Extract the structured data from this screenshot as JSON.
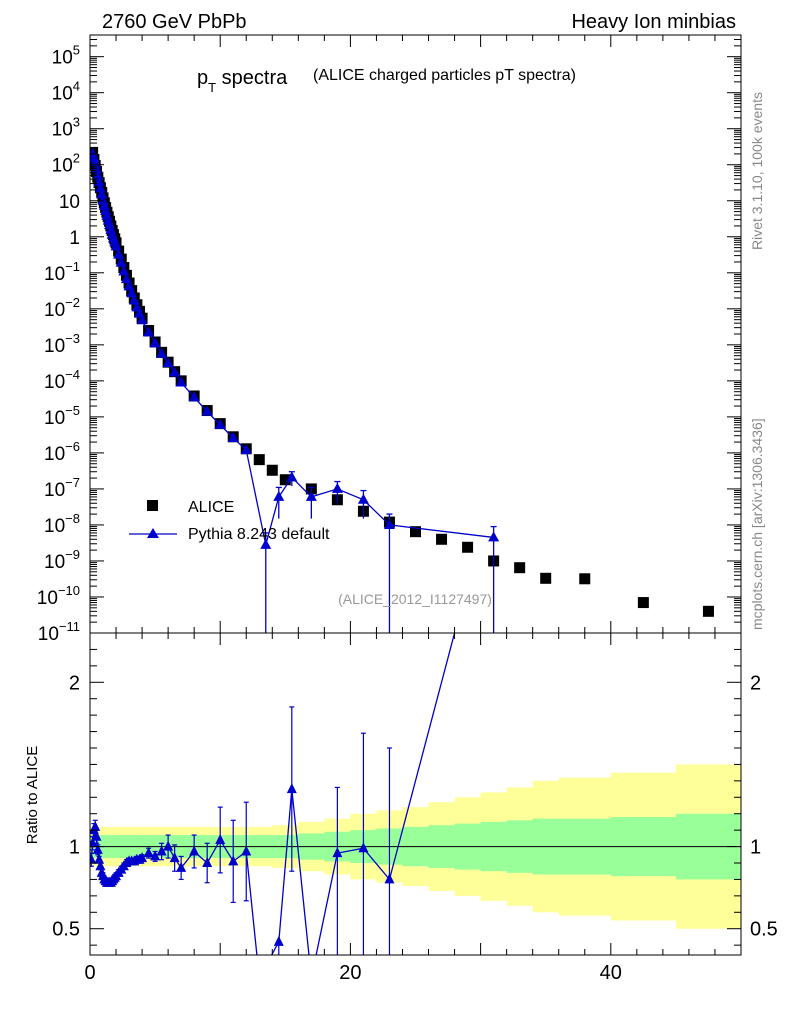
{
  "header": {
    "collision": "2760 GeV PbPb",
    "process": "Heavy Ion minbias"
  },
  "side_labels": {
    "rivet": "Rivet 3.1.10,  100k events",
    "mcplots": "mcplots.cern.ch [arXiv:1306.3436]"
  },
  "analysis_id": "(ALICE_2012_I1127497)",
  "chart_data": [
    {
      "type": "scatter",
      "title": "p_T spectra",
      "title_main": "p",
      "title_sub": "T",
      "title_word": "spectra",
      "subtitle": "(ALICE charged particles pT spectra)",
      "ylog": true,
      "xlim": [
        0,
        50
      ],
      "ylim": [
        1e-11,
        400000.0
      ],
      "y_ticks": [
        {
          "exp": 5,
          "label": "10",
          "sup": "5"
        },
        {
          "exp": 4,
          "label": "10",
          "sup": "4"
        },
        {
          "exp": 3,
          "label": "10",
          "sup": "3"
        },
        {
          "exp": 2,
          "label": "10",
          "sup": "2"
        },
        {
          "exp": 1,
          "label": "10",
          "sup": ""
        },
        {
          "exp": 0,
          "label": "1",
          "sup": ""
        },
        {
          "exp": -1,
          "label": "10",
          "sup": "−1"
        },
        {
          "exp": -2,
          "label": "10",
          "sup": "−2"
        },
        {
          "exp": -3,
          "label": "10",
          "sup": "−3"
        },
        {
          "exp": -4,
          "label": "10",
          "sup": "−4"
        },
        {
          "exp": -5,
          "label": "10",
          "sup": "−5"
        },
        {
          "exp": -6,
          "label": "10",
          "sup": "−6"
        },
        {
          "exp": -7,
          "label": "10",
          "sup": "−7"
        },
        {
          "exp": -8,
          "label": "10",
          "sup": "−8"
        },
        {
          "exp": -9,
          "label": "10",
          "sup": "−9"
        },
        {
          "exp": -10,
          "label": "10",
          "sup": "−10"
        },
        {
          "exp": -11,
          "label": "10",
          "sup": "−11"
        }
      ],
      "legend": {
        "placement": "lower-left",
        "entries": [
          "ALICE",
          "Pythia 8.243 default"
        ]
      },
      "series": [
        {
          "name": "ALICE",
          "marker": "square",
          "color": "#000000",
          "x": [
            0.2,
            0.3,
            0.4,
            0.5,
            0.6,
            0.7,
            0.8,
            0.9,
            1.0,
            1.1,
            1.2,
            1.3,
            1.4,
            1.5,
            1.6,
            1.7,
            1.8,
            1.9,
            2.0,
            2.2,
            2.4,
            2.6,
            2.8,
            3.0,
            3.2,
            3.4,
            3.6,
            3.8,
            4.0,
            4.5,
            5.0,
            5.5,
            6.0,
            6.5,
            7.0,
            8.0,
            9.0,
            10.0,
            11.0,
            12.0,
            13.0,
            14.0,
            15.0,
            17.0,
            19.0,
            21.0,
            23.0,
            25.0,
            27.0,
            29.0,
            31.0,
            33.0,
            35.0,
            38.0,
            42.5,
            47.5
          ],
          "y": [
            220,
            140,
            95,
            65,
            45,
            32,
            23,
            17,
            12,
            8.8,
            6.5,
            4.8,
            3.6,
            2.7,
            2.0,
            1.5,
            1.15,
            0.88,
            0.68,
            0.4,
            0.24,
            0.14,
            0.085,
            0.052,
            0.032,
            0.02,
            0.013,
            0.0085,
            0.0055,
            0.0025,
            0.0012,
            0.00062,
            0.00033,
            0.00018,
            0.0001,
            3.8e-05,
            1.5e-05,
            6.5e-06,
            2.8e-06,
            1.3e-06,
            6.5e-07,
            3.3e-07,
            1.8e-07,
            1e-07,
            5e-08,
            2.4e-08,
            1.2e-08,
            6.5e-09,
            4e-09,
            2.4e-09,
            1e-09,
            6.5e-10,
            3.3e-10,
            3.2e-10,
            7e-11,
            4e-11
          ]
        },
        {
          "name": "Pythia 8.243 default",
          "marker": "triangle",
          "color": "#0000cc",
          "x": [
            0.2,
            0.3,
            0.4,
            0.5,
            0.6,
            0.7,
            0.8,
            0.9,
            1.0,
            1.1,
            1.2,
            1.3,
            1.4,
            1.5,
            1.6,
            1.7,
            1.8,
            1.9,
            2.0,
            2.2,
            2.4,
            2.6,
            2.8,
            3.0,
            3.2,
            3.4,
            3.6,
            3.8,
            4.0,
            4.5,
            5.0,
            5.5,
            6.0,
            6.5,
            7.0,
            8.0,
            9.0,
            10.0,
            11.0,
            12.0,
            13.5,
            14.5,
            15.5,
            17.0,
            19.0,
            21.0,
            23.0,
            31.0
          ],
          "y": [
            200,
            150,
            110,
            75,
            50,
            33,
            22,
            15,
            10,
            7.2,
            5.2,
            3.8,
            2.8,
            2.1,
            1.55,
            1.15,
            0.9,
            0.7,
            0.54,
            0.32,
            0.19,
            0.11,
            0.067,
            0.042,
            0.027,
            0.017,
            0.011,
            0.0073,
            0.0048,
            0.0022,
            0.0011,
            0.00056,
            0.00031,
            0.00017,
            9e-05,
            3.5e-05,
            1.4e-05,
            6e-06,
            2.6e-06,
            1.2e-06,
            2.8e-09,
            6e-08,
            2.1e-07,
            6e-08,
            1e-07,
            5e-08,
            1e-08,
            4.5e-09
          ],
          "err_hi": [
            null,
            null,
            null,
            null,
            null,
            null,
            null,
            null,
            null,
            null,
            null,
            null,
            null,
            null,
            null,
            null,
            null,
            null,
            null,
            null,
            null,
            null,
            null,
            null,
            null,
            null,
            null,
            null,
            null,
            null,
            null,
            null,
            null,
            null,
            null,
            null,
            null,
            null,
            null,
            null,
            6e-09,
            1.1e-07,
            3e-07,
            1.1e-07,
            1.6e-07,
            9e-08,
            2e-08,
            9e-09
          ],
          "err_lo": [
            null,
            null,
            null,
            null,
            null,
            null,
            null,
            null,
            null,
            null,
            null,
            null,
            null,
            null,
            null,
            null,
            null,
            null,
            null,
            null,
            null,
            null,
            null,
            null,
            null,
            null,
            null,
            null,
            null,
            null,
            null,
            null,
            null,
            null,
            null,
            null,
            null,
            null,
            null,
            null,
            1e-13,
            1.5e-08,
            1.2e-07,
            1.5e-08,
            4e-08,
            1.5e-08,
            1e-13,
            1e-13
          ]
        }
      ]
    },
    {
      "type": "line",
      "ylabel": "Ratio to ALICE",
      "xlim": [
        0,
        50
      ],
      "ylim": [
        0.34,
        2.3
      ],
      "x_ticks": [
        0,
        20,
        40
      ],
      "y_ticks": [
        0.5,
        1,
        2
      ],
      "reference_line": 1,
      "bands": {
        "colors": {
          "stat": "#99ff99",
          "total": "#ffff99"
        },
        "edges": [
          0,
          2,
          4,
          6,
          8,
          10,
          12,
          14,
          16,
          18,
          20,
          22,
          24,
          26,
          28,
          30,
          32,
          34,
          36,
          40,
          45,
          50
        ],
        "stat_half_width": [
          0.07,
          0.07,
          0.07,
          0.07,
          0.07,
          0.07,
          0.07,
          0.07,
          0.08,
          0.09,
          0.1,
          0.11,
          0.12,
          0.13,
          0.14,
          0.15,
          0.16,
          0.17,
          0.17,
          0.18,
          0.2
        ],
        "total_half_width": [
          0.12,
          0.12,
          0.12,
          0.12,
          0.12,
          0.12,
          0.12,
          0.13,
          0.15,
          0.17,
          0.2,
          0.22,
          0.24,
          0.27,
          0.3,
          0.33,
          0.36,
          0.4,
          0.42,
          0.45,
          0.5
        ]
      },
      "series": [
        {
          "name": "Pythia 8.243 default",
          "color": "#0000cc",
          "x": [
            0.1,
            0.2,
            0.3,
            0.4,
            0.5,
            0.6,
            0.7,
            0.8,
            0.9,
            1.0,
            1.1,
            1.2,
            1.3,
            1.4,
            1.5,
            1.6,
            1.7,
            1.8,
            1.9,
            2.0,
            2.2,
            2.4,
            2.6,
            2.8,
            3.0,
            3.2,
            3.4,
            3.6,
            3.8,
            4.0,
            4.5,
            5.0,
            5.5,
            6.0,
            6.5,
            7.0,
            8.0,
            9.0,
            10.0,
            11.0,
            12.0,
            13.0,
            14.5,
            15.5,
            17.0,
            19.0,
            21.0,
            23.0,
            31.0
          ],
          "y": [
            0.92,
            1.02,
            1.1,
            1.12,
            1.06,
            0.98,
            0.92,
            0.88,
            0.84,
            0.82,
            0.8,
            0.79,
            0.78,
            0.78,
            0.78,
            0.78,
            0.79,
            0.8,
            0.81,
            0.82,
            0.84,
            0.86,
            0.88,
            0.9,
            0.91,
            0.91,
            0.91,
            0.92,
            0.92,
            0.93,
            0.96,
            0.94,
            0.97,
            1.0,
            0.93,
            0.87,
            0.97,
            0.9,
            1.04,
            0.91,
            0.97,
            0.2,
            0.42,
            1.35,
            0.2,
            0.96,
            0.99,
            0.8,
            3.2
          ],
          "err_hi": [
            0.04,
            0.04,
            0.04,
            0.04,
            0.04,
            0.03,
            0.02,
            0.02,
            0.02,
            0.02,
            0.02,
            0.02,
            0.02,
            0.02,
            0.02,
            0.02,
            0.02,
            0.02,
            0.02,
            0.02,
            0.02,
            0.02,
            0.02,
            0.02,
            0.02,
            0.02,
            0.02,
            0.02,
            0.02,
            0.02,
            0.03,
            0.03,
            0.05,
            0.07,
            0.08,
            0.07,
            0.1,
            0.12,
            0.2,
            0.25,
            0.3,
            0.0,
            0.0,
            0.5,
            0.0,
            0.4,
            0.7,
            0.8,
            0.0
          ],
          "err_lo": [
            0.04,
            0.04,
            0.04,
            0.04,
            0.04,
            0.03,
            0.02,
            0.02,
            0.02,
            0.02,
            0.02,
            0.02,
            0.02,
            0.02,
            0.02,
            0.02,
            0.02,
            0.02,
            0.02,
            0.02,
            0.02,
            0.02,
            0.02,
            0.02,
            0.02,
            0.02,
            0.02,
            0.02,
            0.02,
            0.02,
            0.03,
            0.03,
            0.05,
            0.07,
            0.08,
            0.07,
            0.1,
            0.12,
            0.2,
            0.25,
            0.3,
            0.0,
            0.3,
            0.5,
            0.0,
            0.8,
            0.9,
            0.8,
            0.0
          ]
        }
      ]
    }
  ]
}
